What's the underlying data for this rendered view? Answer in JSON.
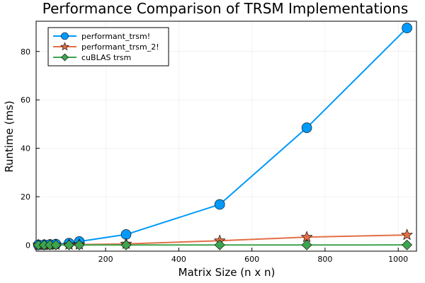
{
  "chart_data": {
    "type": "line",
    "title": "Performance Comparison of TRSM Implementations",
    "xlabel": "Matrix Size (n x n)",
    "ylabel": "Runtime (ms)",
    "xlim": [
      10,
      1050
    ],
    "ylim": [
      -2.5,
      92.5
    ],
    "xticks": [
      200,
      400,
      600,
      800,
      1000
    ],
    "yticks": [
      0,
      20,
      40,
      60,
      80
    ],
    "grid": true,
    "legend_position": "top-left",
    "x": [
      16,
      32,
      48,
      64,
      100,
      128,
      256,
      512,
      750,
      1024
    ],
    "series": [
      {
        "name": "performant_trsm!",
        "color": "#009AFA",
        "marker": "circle",
        "values": [
          0.1,
          0.15,
          0.25,
          0.4,
          0.8,
          1.5,
          4.4,
          16.8,
          48.5,
          89.7
        ]
      },
      {
        "name": "performant_trsm_2!",
        "color": "#E26F46",
        "marker": "star",
        "values": [
          0.05,
          0.06,
          0.08,
          0.1,
          0.15,
          0.2,
          0.5,
          1.8,
          3.3,
          4.2
        ]
      },
      {
        "name": "cuBLAS trsm",
        "color": "#3EA44E",
        "marker": "diamond",
        "values": [
          0.02,
          0.02,
          0.03,
          0.03,
          0.04,
          0.05,
          0.06,
          0.07,
          0.07,
          0.08
        ]
      }
    ]
  }
}
